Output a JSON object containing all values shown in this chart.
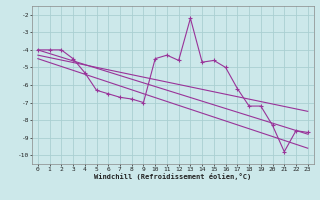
{
  "xlabel": "Windchill (Refroidissement éolien,°C)",
  "background_color": "#cce8ea",
  "grid_color": "#aacfd2",
  "line_color": "#993399",
  "x_hours": [
    0,
    1,
    2,
    3,
    4,
    5,
    6,
    7,
    8,
    9,
    10,
    11,
    12,
    13,
    14,
    15,
    16,
    17,
    18,
    19,
    20,
    21,
    22,
    23
  ],
  "windchill_line": [
    -4.0,
    -4.0,
    -4.0,
    -4.5,
    -5.3,
    -6.3,
    -6.5,
    -6.7,
    -6.8,
    -7.0,
    -4.5,
    -4.3,
    -4.6,
    -2.2,
    -4.7,
    -4.6,
    -5.0,
    -6.2,
    -7.2,
    -7.2,
    -8.3,
    -9.8,
    -8.6,
    -8.7
  ],
  "trend_line1_x": [
    0,
    23
  ],
  "trend_line1_y": [
    -4.0,
    -8.8
  ],
  "trend_line2_x": [
    0,
    23
  ],
  "trend_line2_y": [
    -4.3,
    -7.5
  ],
  "trend_line3_x": [
    0,
    23
  ],
  "trend_line3_y": [
    -4.5,
    -9.6
  ],
  "ylim": [
    -10.5,
    -1.5
  ],
  "yticks": [
    -10,
    -9,
    -8,
    -7,
    -6,
    -5,
    -4,
    -3,
    -2
  ],
  "xticks": [
    0,
    1,
    2,
    3,
    4,
    5,
    6,
    7,
    8,
    9,
    10,
    11,
    12,
    13,
    14,
    15,
    16,
    17,
    18,
    19,
    20,
    21,
    22,
    23
  ]
}
